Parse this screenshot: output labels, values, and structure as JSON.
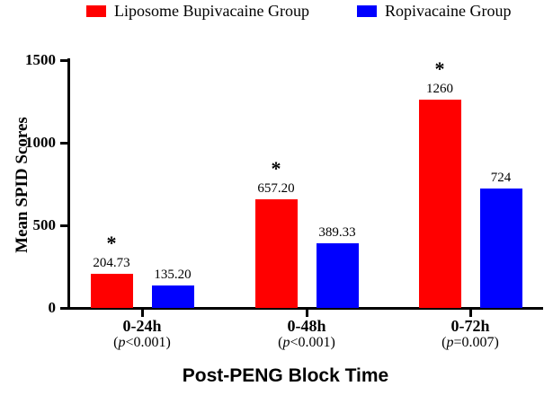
{
  "legend": {
    "position": "top"
  },
  "axes": {
    "y_label": "Mean SPID Scores",
    "x_title": "Post-PENG Block Time"
  },
  "chart_data": {
    "type": "bar",
    "title": "",
    "categories": [
      "0-24h",
      "0-48h",
      "0-72h"
    ],
    "category_sublabels": [
      "(p<0.001)",
      "(p<0.001)",
      "(p=0.007)"
    ],
    "series": [
      {
        "name": "Liposome Bupivacaine Group",
        "color": "#ff0000",
        "values": [
          204.73,
          657.2,
          1260
        ],
        "value_labels": [
          "204.73",
          "657.20",
          "1260"
        ],
        "significance": [
          "*",
          "*",
          "*"
        ]
      },
      {
        "name": "Ropivacaine Group",
        "color": "#0000ff",
        "values": [
          135.2,
          389.33,
          724
        ],
        "value_labels": [
          "135.20",
          "389.33",
          "724"
        ],
        "significance": [
          "",
          "",
          ""
        ]
      }
    ],
    "xlabel": "Post-PENG Block Time",
    "ylabel": "Mean SPID Scores",
    "ylim": [
      0,
      1500
    ],
    "yticks": [
      0,
      500,
      1000,
      1500
    ],
    "grid": false,
    "legend_position": "top",
    "bar_outline": false,
    "axis_color": "#000000",
    "text_color": "#000000"
  }
}
